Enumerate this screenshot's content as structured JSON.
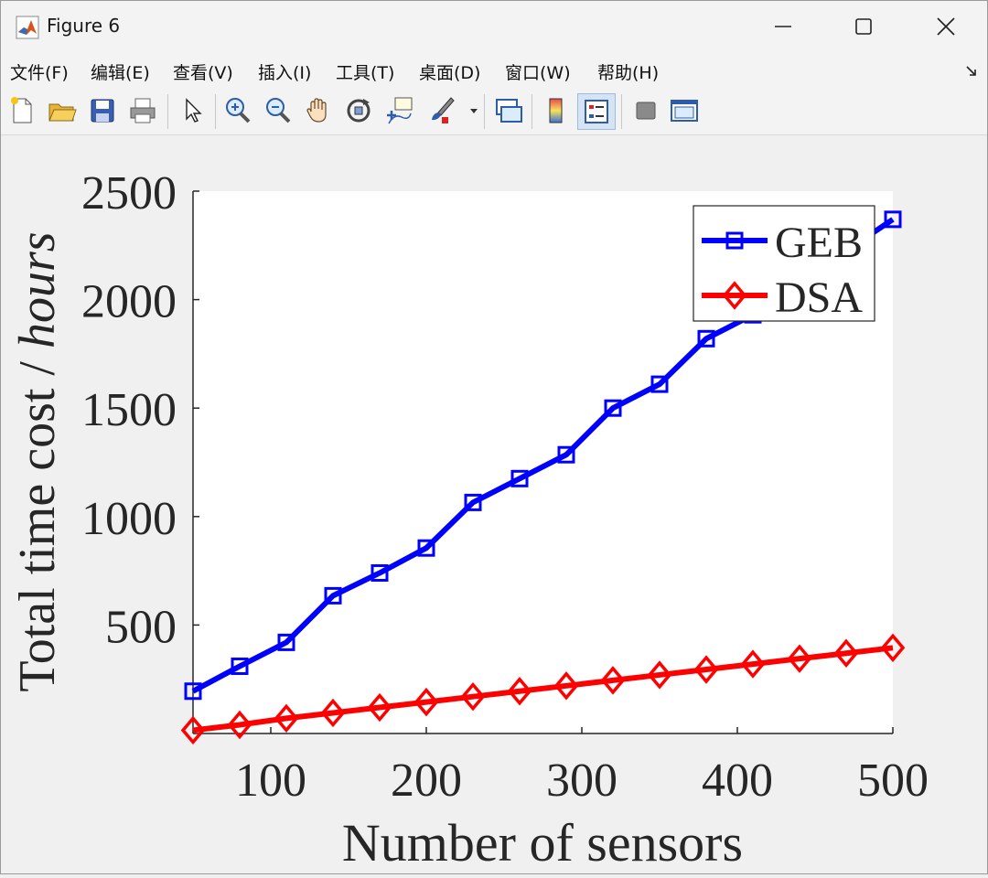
{
  "window": {
    "title": "Figure 6",
    "app_icon": "matlab-icon",
    "controls": [
      "minimize-icon",
      "maximize-icon",
      "close-icon"
    ]
  },
  "menubar": {
    "items": [
      {
        "label": "文件(F)",
        "name": "menu-file"
      },
      {
        "label": "编辑(E)",
        "name": "menu-edit"
      },
      {
        "label": "查看(V)",
        "name": "menu-view"
      },
      {
        "label": "插入(I)",
        "name": "menu-insert"
      },
      {
        "label": "工具(T)",
        "name": "menu-tools"
      },
      {
        "label": "桌面(D)",
        "name": "menu-desktop"
      },
      {
        "label": "窗口(W)",
        "name": "menu-window"
      },
      {
        "label": "帮助(H)",
        "name": "menu-help"
      }
    ]
  },
  "toolbar": {
    "icons": [
      "new-figure-icon",
      "open-file-icon",
      "save-icon",
      "print-icon",
      "select-arrow-icon",
      "zoom-in-icon",
      "zoom-out-icon",
      "pan-hand-icon",
      "rotate-3d-icon",
      "data-cursor-icon",
      "brush-icon",
      "link-plot-icon",
      "colorbar-icon",
      "legend-icon",
      "hide-plot-tools-icon",
      "show-plot-tools-icon"
    ]
  },
  "colors": {
    "geb": "#0000ff",
    "dsa": "#ff0000"
  },
  "chart_data": {
    "type": "line",
    "xlabel": "Number of sensors",
    "ylabel_main": "Total time cost / ",
    "ylabel_unit": "hours",
    "xlim": [
      50,
      500
    ],
    "ylim": [
      0,
      2500
    ],
    "xticks": [
      100,
      200,
      300,
      400,
      500
    ],
    "yticks": [
      500,
      1000,
      1500,
      2000,
      2500
    ],
    "grid": false,
    "legend_position": "top-right",
    "x": [
      50,
      80,
      110,
      140,
      170,
      200,
      230,
      260,
      290,
      320,
      350,
      380,
      410,
      440,
      470,
      500
    ],
    "series": [
      {
        "name": "GEB",
        "color": "#0000ff",
        "marker": "square",
        "values": [
          195,
          310,
          420,
          635,
          740,
          855,
          1065,
          1175,
          1285,
          1500,
          1610,
          1820,
          1930,
          2045,
          2225,
          2370
        ]
      },
      {
        "name": "DSA",
        "color": "#ff0000",
        "marker": "diamond",
        "values": [
          15,
          40,
          70,
          95,
          120,
          145,
          170,
          195,
          220,
          245,
          270,
          295,
          320,
          345,
          370,
          395
        ]
      }
    ]
  }
}
